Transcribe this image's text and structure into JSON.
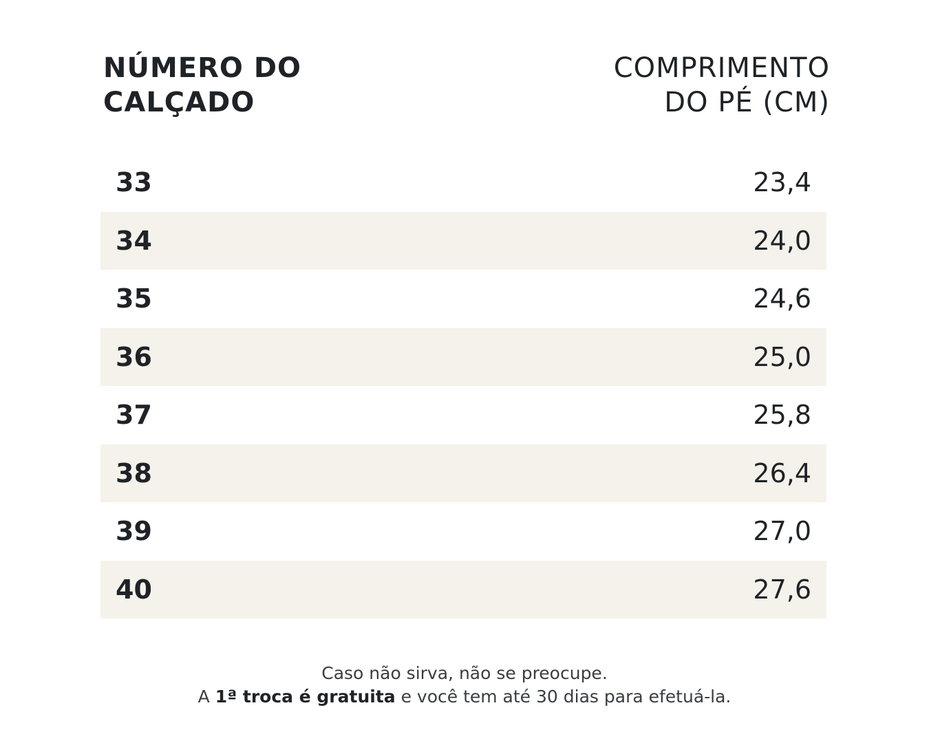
{
  "header": {
    "size_label": [
      "NÚMERO DO",
      "CALÇADO"
    ],
    "length_label": [
      "COMPRIMENTO",
      "DO PÉ (CM)"
    ]
  },
  "rows": [
    {
      "size": "33",
      "length": "23,4"
    },
    {
      "size": "34",
      "length": "24,0"
    },
    {
      "size": "35",
      "length": "24,6"
    },
    {
      "size": "36",
      "length": "25,0"
    },
    {
      "size": "37",
      "length": "25,8"
    },
    {
      "size": "38",
      "length": "26,4"
    },
    {
      "size": "39",
      "length": "27,0"
    },
    {
      "size": "40",
      "length": "27,6"
    }
  ],
  "footer": {
    "line1": "Caso não sirva, não se preocupe.",
    "line2_prefix": "A ",
    "line2_bold": "1ª troca é gratuita",
    "line2_suffix": " e você tem até 30 dias para efetuá-la."
  },
  "colors": {
    "text": "#1f2327",
    "row_shade": "#f5f2eb",
    "background": "#ffffff"
  }
}
